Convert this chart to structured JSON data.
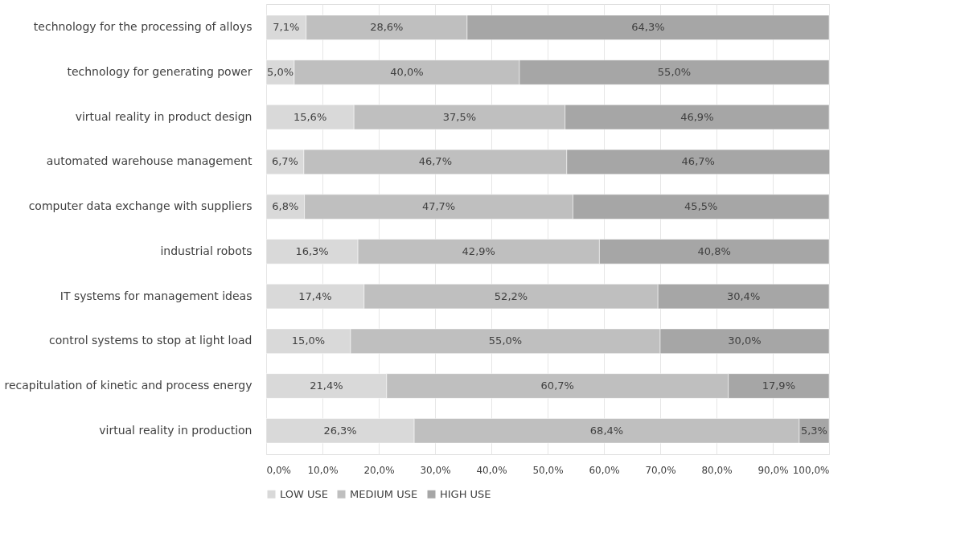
{
  "chart_data": {
    "type": "bar",
    "orientation": "horizontal",
    "stacked": true,
    "categories": [
      "technology for the processing of alloys",
      "technology for generating power",
      "virtual reality in product design",
      "automated warehouse management",
      "computer data exchange with suppliers",
      "industrial robots",
      "IT systems for management ideas",
      "control systems to stop at light load",
      "recapitulation of kinetic and process energy",
      "virtual reality in production"
    ],
    "series": [
      {
        "name": "LOW USE",
        "color": "#d9d9d9",
        "values": [
          7.1,
          5.0,
          15.6,
          6.7,
          6.8,
          16.3,
          17.4,
          15.0,
          21.4,
          26.3
        ],
        "value_labels": [
          "7,1%",
          "5,0%",
          "15,6%",
          "6,7%",
          "6,8%",
          "16,3%",
          "17,4%",
          "15,0%",
          "21,4%",
          "26,3%"
        ]
      },
      {
        "name": "MEDIUM USE",
        "color": "#bfbfbf",
        "values": [
          28.6,
          40.0,
          37.5,
          46.7,
          47.7,
          42.9,
          52.2,
          55.0,
          60.7,
          68.4
        ],
        "value_labels": [
          "28,6%",
          "40,0%",
          "37,5%",
          "46,7%",
          "47,7%",
          "42,9%",
          "52,2%",
          "55,0%",
          "60,7%",
          "68,4%"
        ]
      },
      {
        "name": "HIGH USE",
        "color": "#a6a6a6",
        "values": [
          64.3,
          55.0,
          46.9,
          46.7,
          45.5,
          40.8,
          30.4,
          30.0,
          17.9,
          5.3
        ],
        "value_labels": [
          "64,3%",
          "55,0%",
          "46,9%",
          "46,7%",
          "45,5%",
          "40,8%",
          "30,4%",
          "30,0%",
          "17,9%",
          "5,3%"
        ]
      }
    ],
    "xlim": [
      0,
      100
    ],
    "xticks": [
      {
        "value": 0,
        "label": "0,0%"
      },
      {
        "value": 10,
        "label": "10,0%"
      },
      {
        "value": 20,
        "label": "20,0%"
      },
      {
        "value": 30,
        "label": "30,0%"
      },
      {
        "value": 40,
        "label": "40,0%"
      },
      {
        "value": 50,
        "label": "50,0%"
      },
      {
        "value": 60,
        "label": "60,0%"
      },
      {
        "value": 70,
        "label": "70,0%"
      },
      {
        "value": 80,
        "label": "80,0%"
      },
      {
        "value": 90,
        "label": "90,0%"
      },
      {
        "value": 100,
        "label": "100,0%"
      }
    ],
    "grid": "x",
    "legend": "bottom"
  }
}
